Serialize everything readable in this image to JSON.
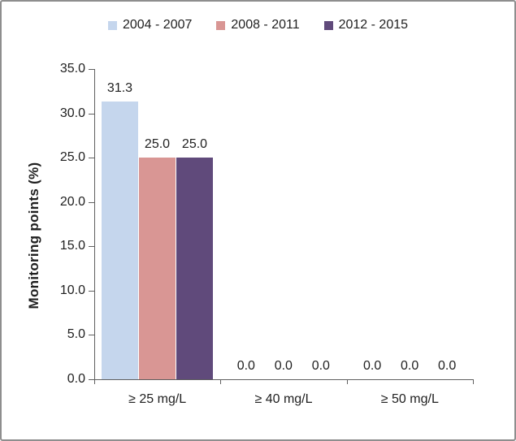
{
  "chart_data": {
    "type": "bar",
    "title": "",
    "xlabel": "",
    "ylabel": "Monitoring points (%)",
    "categories": [
      "≥ 25 mg/L",
      "≥ 40 mg/L",
      "≥ 50 mg/L"
    ],
    "series": [
      {
        "name": "2004 - 2007",
        "color": "#C5D6ED",
        "values": [
          31.3,
          0.0,
          0.0
        ],
        "labels": [
          "31.3",
          "0.0",
          "0.0"
        ]
      },
      {
        "name": "2008 - 2011",
        "color": "#D99694",
        "values": [
          25.0,
          0.0,
          0.0
        ],
        "labels": [
          "25.0",
          "0.0",
          "0.0"
        ]
      },
      {
        "name": "2012 - 2015",
        "color": "#604A7B",
        "values": [
          25.0,
          0.0,
          0.0
        ],
        "labels": [
          "25.0",
          "0.0",
          "0.0"
        ]
      }
    ],
    "ylim": [
      0,
      35
    ],
    "ytick_step": 5,
    "ytick_labels": [
      "0.0",
      "5.0",
      "10.0",
      "15.0",
      "20.0",
      "25.0",
      "30.0",
      "35.0"
    ],
    "grid": false,
    "legend_position": "top",
    "data_labels_shown": true
  },
  "colors": {
    "axis": "#606060",
    "text": "#1F1F1F",
    "frame_border": "#8E8E8E",
    "background": "#FFFFFF"
  }
}
